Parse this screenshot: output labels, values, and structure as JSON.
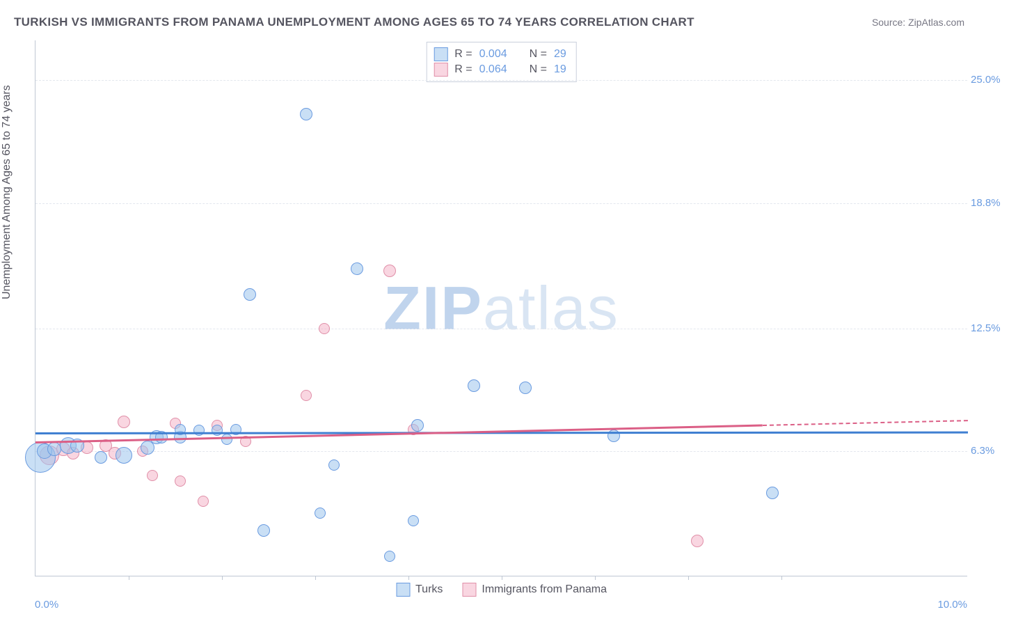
{
  "title": "TURKISH VS IMMIGRANTS FROM PANAMA UNEMPLOYMENT AMONG AGES 65 TO 74 YEARS CORRELATION CHART",
  "source": "Source: ZipAtlas.com",
  "ylabel": "Unemployment Among Ages 65 to 74 years",
  "watermark_a": "ZIP",
  "watermark_b": "atlas",
  "chart": {
    "type": "scatter",
    "x_domain": [
      0,
      10
    ],
    "y_domain": [
      0,
      27
    ],
    "background_color": "#ffffff",
    "grid_color": "#e3e7ee",
    "axis_color": "#bfc7d3",
    "tick_label_color": "#6a9be0",
    "y_grids": [
      6.3,
      12.5,
      18.8,
      25.0
    ],
    "y_tick_labels": [
      "6.3%",
      "12.5%",
      "18.8%",
      "25.0%"
    ],
    "x_ticks": [
      1,
      2,
      3,
      4,
      5,
      6,
      7,
      8
    ],
    "x_min_label": "0.0%",
    "x_max_label": "10.0%"
  },
  "series": {
    "turks": {
      "label": "Turks",
      "fill": "rgba(156,196,236,0.55)",
      "stroke": "#6a9be0",
      "trend_color": "#3f7fd1",
      "R": "0.004",
      "N": "29",
      "trend": {
        "x1": 0.0,
        "y1": 7.25,
        "x2": 10.0,
        "y2": 7.3
      },
      "points": [
        {
          "x": 0.05,
          "y": 6.0,
          "r": 22
        },
        {
          "x": 0.1,
          "y": 6.3,
          "r": 11
        },
        {
          "x": 0.2,
          "y": 6.4,
          "r": 10
        },
        {
          "x": 0.35,
          "y": 6.6,
          "r": 12
        },
        {
          "x": 0.45,
          "y": 6.6,
          "r": 10
        },
        {
          "x": 0.7,
          "y": 6.0,
          "r": 9
        },
        {
          "x": 0.95,
          "y": 6.1,
          "r": 12
        },
        {
          "x": 1.2,
          "y": 6.5,
          "r": 10
        },
        {
          "x": 1.3,
          "y": 7.0,
          "r": 10
        },
        {
          "x": 1.35,
          "y": 7.0,
          "r": 9
        },
        {
          "x": 1.55,
          "y": 7.0,
          "r": 9
        },
        {
          "x": 1.55,
          "y": 7.4,
          "r": 8
        },
        {
          "x": 1.75,
          "y": 7.35,
          "r": 8
        },
        {
          "x": 1.95,
          "y": 7.35,
          "r": 8
        },
        {
          "x": 2.05,
          "y": 6.9,
          "r": 8
        },
        {
          "x": 2.15,
          "y": 7.4,
          "r": 8
        },
        {
          "x": 2.3,
          "y": 14.2,
          "r": 9
        },
        {
          "x": 2.45,
          "y": 2.3,
          "r": 9
        },
        {
          "x": 2.9,
          "y": 23.3,
          "r": 9
        },
        {
          "x": 3.05,
          "y": 3.2,
          "r": 8
        },
        {
          "x": 3.2,
          "y": 5.6,
          "r": 8
        },
        {
          "x": 3.45,
          "y": 15.5,
          "r": 9
        },
        {
          "x": 3.8,
          "y": 1.0,
          "r": 8
        },
        {
          "x": 4.05,
          "y": 2.8,
          "r": 8
        },
        {
          "x": 4.1,
          "y": 7.6,
          "r": 9
        },
        {
          "x": 4.7,
          "y": 9.6,
          "r": 9
        },
        {
          "x": 5.25,
          "y": 9.5,
          "r": 9
        },
        {
          "x": 6.2,
          "y": 7.1,
          "r": 9
        },
        {
          "x": 7.9,
          "y": 4.2,
          "r": 9
        }
      ]
    },
    "panama": {
      "label": "Immigrants from Panama",
      "fill": "rgba(244,180,200,0.55)",
      "stroke": "#e08fa8",
      "trend_color": "#db5f86",
      "R": "0.064",
      "N": "19",
      "trend": {
        "x1": 0.0,
        "y1": 6.8,
        "x2": 10.0,
        "y2": 7.9
      },
      "trend_solid_frac": 0.78,
      "points": [
        {
          "x": 0.15,
          "y": 6.1,
          "r": 14
        },
        {
          "x": 0.3,
          "y": 6.4,
          "r": 10
        },
        {
          "x": 0.4,
          "y": 6.2,
          "r": 9
        },
        {
          "x": 0.55,
          "y": 6.5,
          "r": 9
        },
        {
          "x": 0.75,
          "y": 6.6,
          "r": 9
        },
        {
          "x": 0.85,
          "y": 6.2,
          "r": 9
        },
        {
          "x": 0.95,
          "y": 7.8,
          "r": 9
        },
        {
          "x": 1.15,
          "y": 6.3,
          "r": 8
        },
        {
          "x": 1.25,
          "y": 5.1,
          "r": 8
        },
        {
          "x": 1.5,
          "y": 7.7,
          "r": 8
        },
        {
          "x": 1.55,
          "y": 4.8,
          "r": 8
        },
        {
          "x": 1.8,
          "y": 3.8,
          "r": 8
        },
        {
          "x": 1.95,
          "y": 7.6,
          "r": 8
        },
        {
          "x": 2.25,
          "y": 6.8,
          "r": 8
        },
        {
          "x": 2.9,
          "y": 9.1,
          "r": 8
        },
        {
          "x": 3.1,
          "y": 12.5,
          "r": 8
        },
        {
          "x": 3.8,
          "y": 15.4,
          "r": 9
        },
        {
          "x": 4.05,
          "y": 7.4,
          "r": 8
        },
        {
          "x": 7.1,
          "y": 1.8,
          "r": 9
        }
      ]
    }
  },
  "legend_top": {
    "r_label": "R =",
    "n_label": "N ="
  }
}
